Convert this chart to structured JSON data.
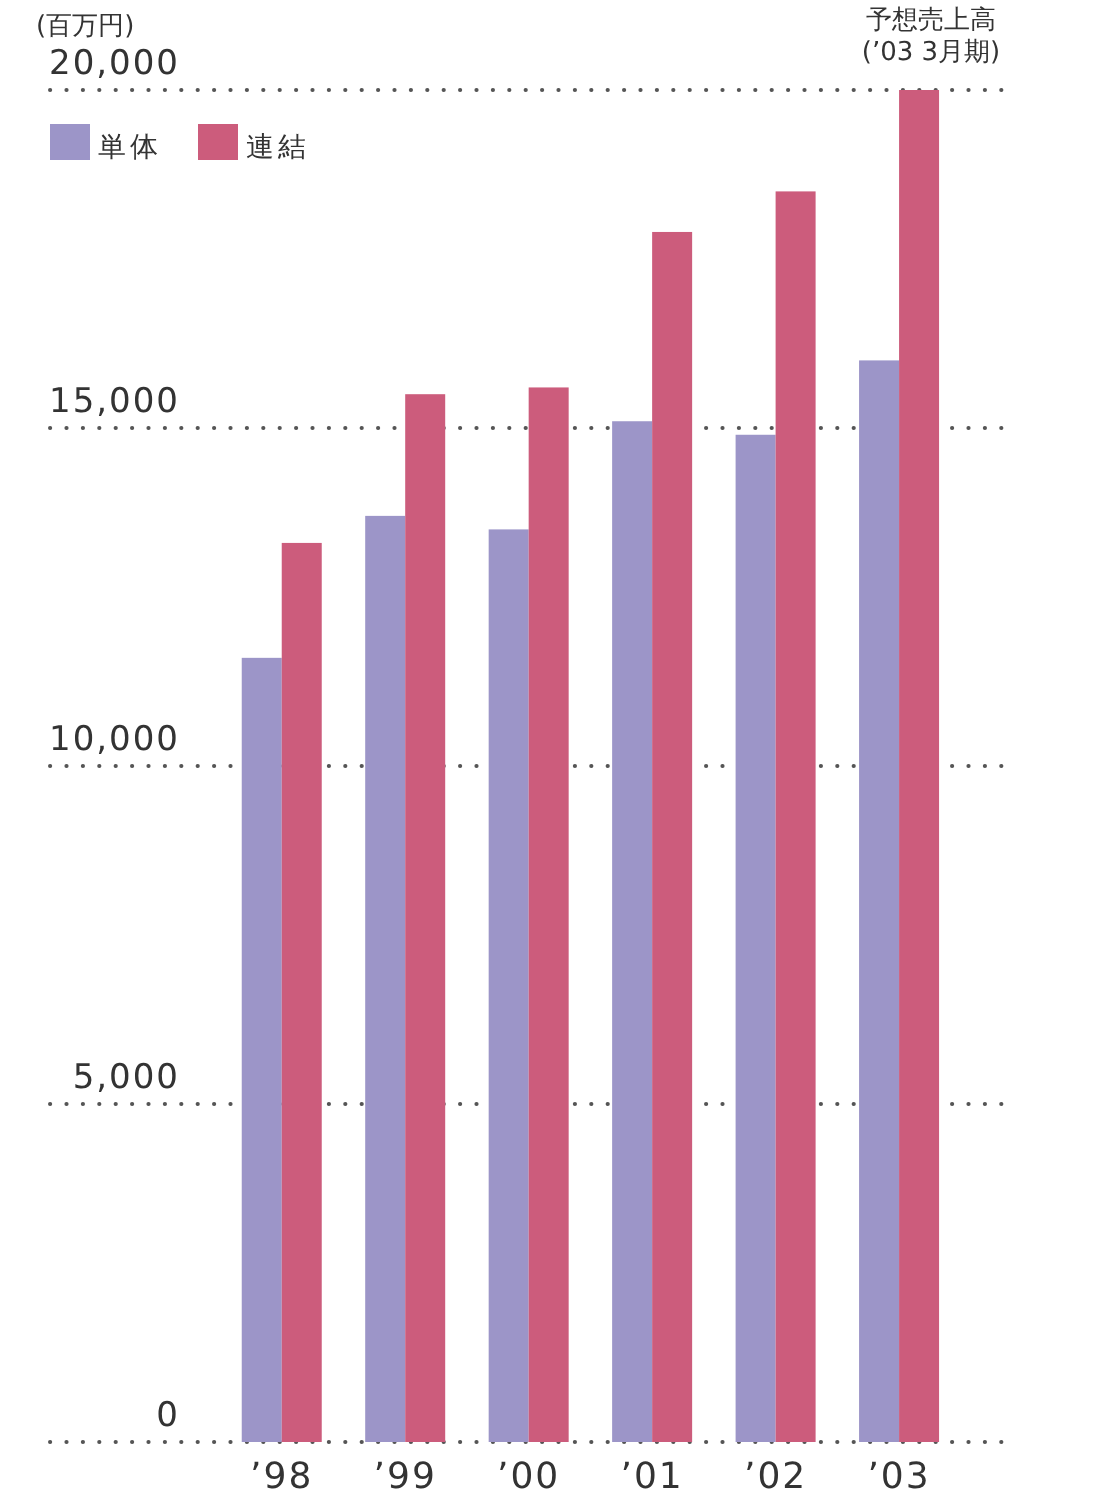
{
  "chart_data": {
    "type": "bar",
    "ylabel": "(百万円)",
    "categories": [
      "’98",
      "’99",
      "’00",
      "’01",
      "’02",
      "’03"
    ],
    "series": [
      {
        "name": "単体",
        "color": "#9c95c8",
        "values": [
          11600,
          13700,
          13500,
          15100,
          14900,
          16000
        ]
      },
      {
        "name": "連結",
        "color": "#cc5c7c",
        "values": [
          13300,
          15500,
          15600,
          17900,
          18500,
          20000
        ]
      }
    ],
    "ylim": [
      0,
      20000
    ],
    "yticks": [
      {
        "value": 0,
        "label": "0"
      },
      {
        "value": 5000,
        "label": "5,000"
      },
      {
        "value": 10000,
        "label": "10,000"
      },
      {
        "value": 15000,
        "label": "15,000"
      },
      {
        "value": 20000,
        "label": "20,000"
      }
    ],
    "grid": "y",
    "legend": "top left",
    "annotations": [
      {
        "text": "予想売上高",
        "x": "’03",
        "y": 20000
      },
      {
        "text": "(’03 3月期)",
        "x": "’03",
        "y": 20000
      }
    ]
  }
}
